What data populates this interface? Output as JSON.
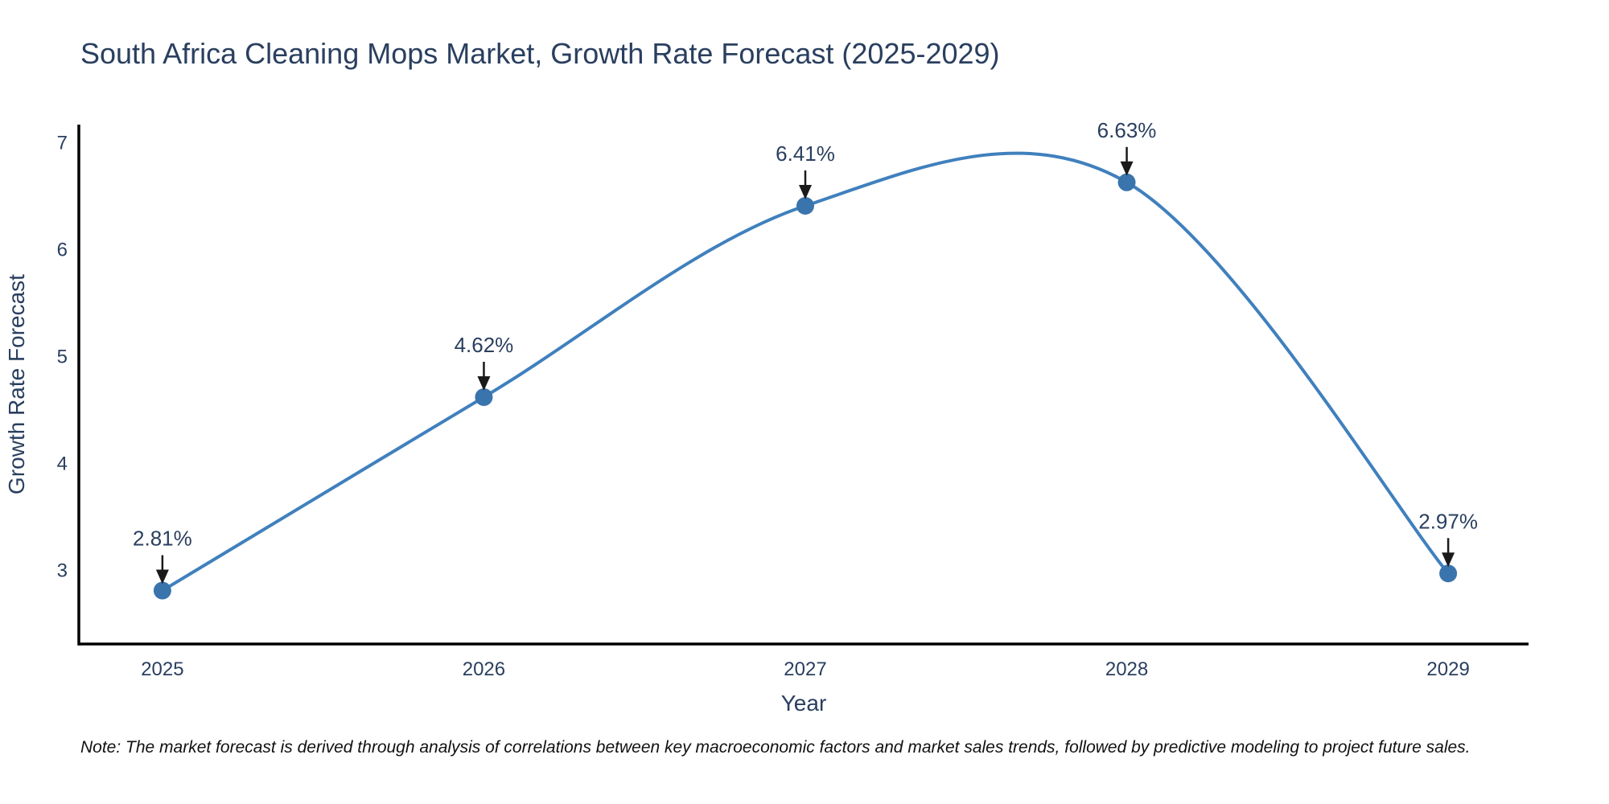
{
  "title": "South Africa Cleaning Mops Market, Growth Rate Forecast (2025-2029)",
  "note": "Note: The market forecast is derived through analysis of correlations between key macroeconomic factors and market sales trends, followed by predictive modeling to project future sales.",
  "chart_data": {
    "type": "line",
    "title": "South Africa Cleaning Mops Market, Growth Rate Forecast (2025-2029)",
    "x": [
      2025,
      2026,
      2027,
      2028,
      2029
    ],
    "x_tick_labels": [
      "2025",
      "2026",
      "2027",
      "2028",
      "2029"
    ],
    "series": [
      {
        "name": "Growth Rate Forecast",
        "values": [
          2.81,
          4.62,
          6.41,
          6.63,
          2.97
        ],
        "point_labels": [
          "2.81%",
          "4.62%",
          "6.41%",
          "6.63%",
          "2.97%"
        ]
      }
    ],
    "xlabel": "Year",
    "ylabel": "Growth Rate Forecast",
    "yticks": [
      3,
      4,
      5,
      6,
      7
    ],
    "ylim": [
      2.31,
      7.17
    ],
    "xlim": [
      2024.74,
      2029.25
    ],
    "line_shape": "spline",
    "grid": false,
    "legend_position": "none",
    "annotations_have_arrows": true,
    "colors": {
      "line": "#4080bd",
      "marker": "#3a74ad",
      "text": "#2a3f5f",
      "axis_line": "#000000",
      "arrow": "#1a1a1a",
      "note_text": "#111111",
      "background": "#ffffff"
    }
  }
}
